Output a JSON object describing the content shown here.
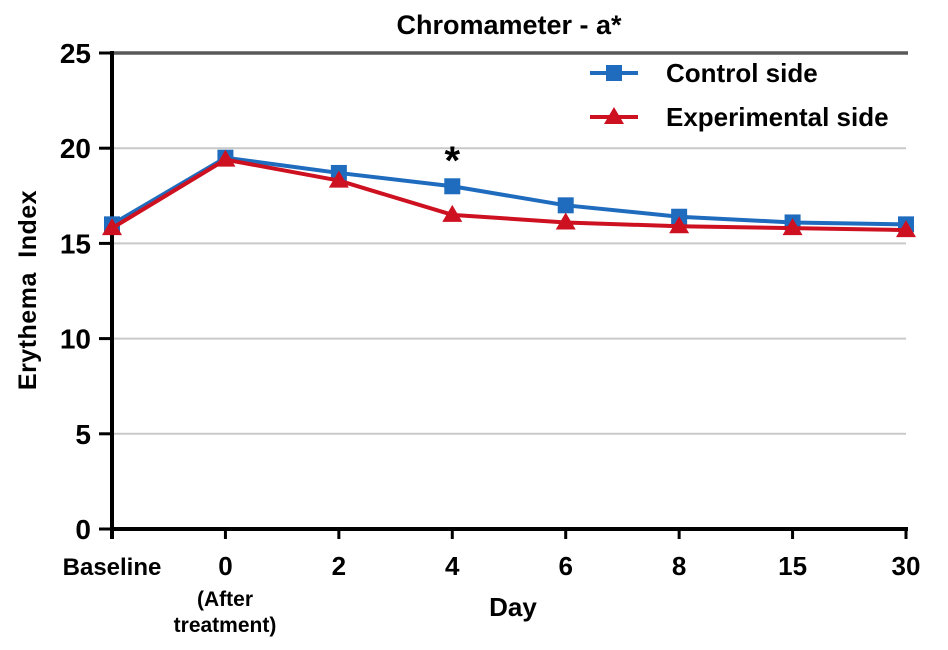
{
  "chart_data": {
    "type": "line",
    "title": "Chromameter - a*",
    "xlabel": "Day",
    "ylabel": "Erythema  Index",
    "categories": [
      "Baseline",
      "0",
      "2",
      "4",
      "6",
      "8",
      "15",
      "30"
    ],
    "x_sub_label": {
      "category_index": 1,
      "text": "(After\ntreatment)"
    },
    "ylim": [
      0,
      25
    ],
    "yticks": [
      0,
      5,
      10,
      15,
      20,
      25
    ],
    "grid": "horizontal",
    "legend_position": "top-right-inside",
    "series": [
      {
        "name": "Control side",
        "marker": "square",
        "color": "#1f6cbf",
        "values": [
          16.0,
          19.5,
          18.7,
          18.0,
          17.0,
          16.4,
          16.1,
          16.0
        ]
      },
      {
        "name": "Experimental side",
        "marker": "triangle",
        "color": "#ce1120",
        "values": [
          15.8,
          19.4,
          18.3,
          16.5,
          16.1,
          15.9,
          15.8,
          15.7
        ]
      }
    ],
    "annotation": {
      "text": "*",
      "category_index": 3,
      "y": 19.7
    }
  },
  "colors": {
    "gridline": "#c9c9c9",
    "plot_top_border": "#595959",
    "axis": "#000000",
    "text": "#000000",
    "background": "#ffffff"
  }
}
